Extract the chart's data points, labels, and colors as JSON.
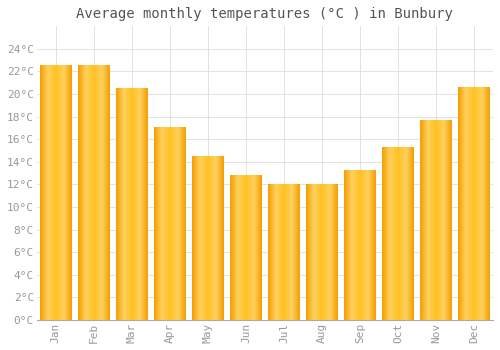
{
  "title": "Average monthly temperatures (°C ) in Bunbury",
  "months": [
    "Jan",
    "Feb",
    "Mar",
    "Apr",
    "May",
    "Jun",
    "Jul",
    "Aug",
    "Sep",
    "Oct",
    "Nov",
    "Dec"
  ],
  "values": [
    22.5,
    22.5,
    20.5,
    17.0,
    14.5,
    12.8,
    12.0,
    12.0,
    13.2,
    15.3,
    17.7,
    20.6
  ],
  "bar_color_center": "#FFC200",
  "bar_color_edge": "#F5A800",
  "bar_gradient_left": "#FFD966",
  "bar_gradient_right": "#FFA500",
  "ylim": [
    0,
    26
  ],
  "yticks": [
    0,
    2,
    4,
    6,
    8,
    10,
    12,
    14,
    16,
    18,
    20,
    22,
    24
  ],
  "background_color": "#FFFFFF",
  "grid_color": "#DDDDDD",
  "title_fontsize": 10,
  "tick_fontsize": 8,
  "tick_color": "#999999",
  "title_color": "#555555"
}
